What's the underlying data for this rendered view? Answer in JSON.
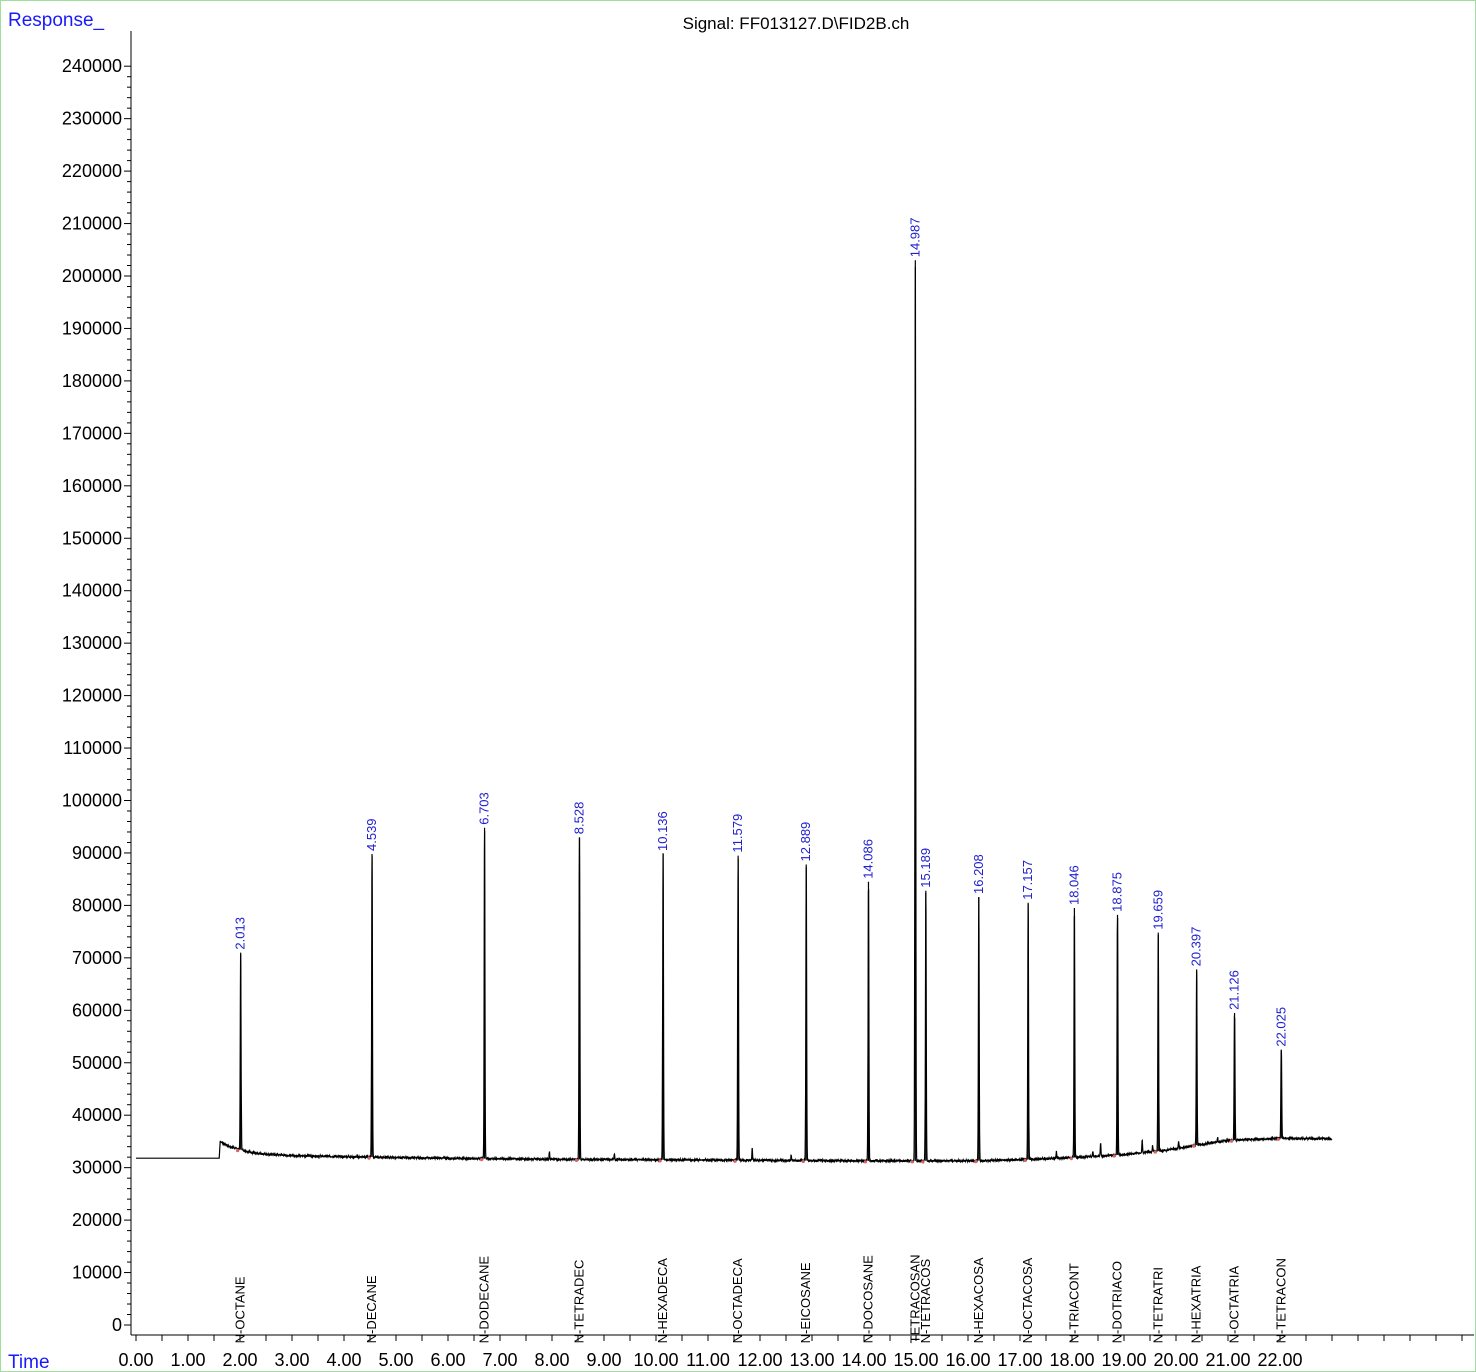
{
  "chart_data": {
    "type": "line",
    "title": "Signal: FF013127.D\\FID2B.ch",
    "ylabel": "Response_",
    "xlabel": "Time",
    "xlim": [
      0.0,
      23.0
    ],
    "ylim": [
      -2000,
      244000
    ],
    "y_ticks": [
      "0",
      "10000",
      "20000",
      "30000",
      "40000",
      "50000",
      "60000",
      "70000",
      "80000",
      "90000",
      "100000",
      "110000",
      "120000",
      "130000",
      "140000",
      "150000",
      "160000",
      "170000",
      "180000",
      "190000",
      "200000",
      "210000",
      "220000",
      "230000",
      "240000"
    ],
    "x_ticks": [
      "0.00",
      "1.00",
      "2.00",
      "3.00",
      "4.00",
      "5.00",
      "6.00",
      "7.00",
      "8.00",
      "9.00",
      "10.00",
      "11.00",
      "12.00",
      "13.00",
      "14.00",
      "15.00",
      "16.00",
      "17.00",
      "18.00",
      "19.00",
      "20.00",
      "21.00",
      "22.00"
    ],
    "baseline": [
      [
        0.0,
        31800
      ],
      [
        1.6,
        31800
      ],
      [
        1.62,
        35000
      ],
      [
        1.8,
        34000
      ],
      [
        2.3,
        32700
      ],
      [
        3.0,
        32300
      ],
      [
        4.5,
        32000
      ],
      [
        6.0,
        31800
      ],
      [
        8.0,
        31600
      ],
      [
        10.0,
        31500
      ],
      [
        12.0,
        31400
      ],
      [
        14.0,
        31300
      ],
      [
        15.0,
        31300
      ],
      [
        16.0,
        31300
      ],
      [
        17.0,
        31500
      ],
      [
        18.0,
        31900
      ],
      [
        19.0,
        32500
      ],
      [
        19.8,
        33300
      ],
      [
        20.4,
        34300
      ],
      [
        21.0,
        35200
      ],
      [
        22.0,
        35600
      ],
      [
        23.0,
        35500
      ]
    ],
    "peaks": [
      {
        "rt": "2.013",
        "x": 2.013,
        "height": 71000,
        "compound": "N-OCTANE"
      },
      {
        "rt": "4.539",
        "x": 4.539,
        "height": 89800,
        "compound": "N-DECANE"
      },
      {
        "rt": "6.703",
        "x": 6.703,
        "height": 94800,
        "compound": "N-DODECANE"
      },
      {
        "rt": "8.528",
        "x": 8.528,
        "height": 93000,
        "compound": "N-TETRADEC"
      },
      {
        "rt": "10.136",
        "x": 10.136,
        "height": 89800,
        "compound": "N-HEXADECA"
      },
      {
        "rt": "11.579",
        "x": 11.579,
        "height": 89500,
        "compound": "N-OCTADECA"
      },
      {
        "rt": "12.889",
        "x": 12.889,
        "height": 87800,
        "compound": "N-EICOSANE"
      },
      {
        "rt": "14.086",
        "x": 14.086,
        "height": 84500,
        "compound": "N-DOCOSANE"
      },
      {
        "rt": "14.987",
        "x": 14.987,
        "height": 203000,
        "compound": "TETRACOSAN"
      },
      {
        "rt": "15.189",
        "x": 15.189,
        "height": 82800,
        "compound": "N-TETRACOS"
      },
      {
        "rt": "16.208",
        "x": 16.208,
        "height": 81600,
        "compound": "N-HEXACOSA"
      },
      {
        "rt": "17.157",
        "x": 17.157,
        "height": 80500,
        "compound": "N-OCTACOSA"
      },
      {
        "rt": "18.046",
        "x": 18.046,
        "height": 79500,
        "compound": "N-TRIACONT"
      },
      {
        "rt": "18.875",
        "x": 18.875,
        "height": 78200,
        "compound": "N-DOTRIACO"
      },
      {
        "rt": "19.659",
        "x": 19.659,
        "height": 74800,
        "compound": "N-TETRATRI"
      },
      {
        "rt": "20.397",
        "x": 20.397,
        "height": 67800,
        "compound": "N-HEXATRIA"
      },
      {
        "rt": "21.126",
        "x": 21.126,
        "height": 59500,
        "compound": "N-OCTATRIA"
      },
      {
        "rt": "22.025",
        "x": 22.025,
        "height": 52500,
        "compound": "N-TETRACON"
      }
    ],
    "minor_peaks": [
      [
        7.95,
        33000
      ],
      [
        9.2,
        32700
      ],
      [
        11.85,
        33700
      ],
      [
        12.6,
        32400
      ],
      [
        17.7,
        33100
      ],
      [
        18.4,
        33100
      ],
      [
        18.55,
        34800
      ],
      [
        19.35,
        35400
      ],
      [
        19.55,
        34200
      ],
      [
        20.05,
        35000
      ],
      [
        20.8,
        35800
      ]
    ]
  }
}
